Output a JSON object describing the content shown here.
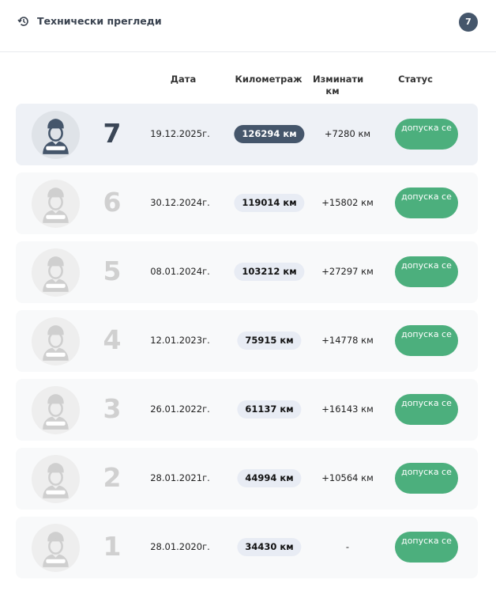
{
  "header": {
    "title": "Технически прегледи",
    "count": "7",
    "icon": "history-icon"
  },
  "columns": {
    "date": "Дата",
    "mileage": "Километраж",
    "driven": "Изминати км",
    "status": "Статус"
  },
  "rows": [
    {
      "num": "7",
      "date": "19.12.2025г.",
      "km": "126294 км",
      "diff": "+7280 км",
      "status": "допуска се",
      "active": true
    },
    {
      "num": "6",
      "date": "30.12.2024г.",
      "km": "119014 км",
      "diff": "+15802 км",
      "status": "допуска се"
    },
    {
      "num": "5",
      "date": "08.01.2024г.",
      "km": "103212 км",
      "diff": "+27297 км",
      "status": "допуска се"
    },
    {
      "num": "4",
      "date": "12.01.2023г.",
      "km": "75915 км",
      "diff": "+14778 км",
      "status": "допуска се"
    },
    {
      "num": "3",
      "date": "26.01.2022г.",
      "km": "61137 км",
      "diff": "+16143 км",
      "status": "допуска се"
    },
    {
      "num": "2",
      "date": "28.01.2021г.",
      "km": "44994 км",
      "diff": "+10564 км",
      "status": "допуска се"
    },
    {
      "num": "1",
      "date": "28.01.2020г.",
      "km": "34430 км",
      "diff": "-",
      "status": "допуска се"
    }
  ],
  "colors": {
    "accent": "#45566b",
    "status": "#4caf7d"
  }
}
